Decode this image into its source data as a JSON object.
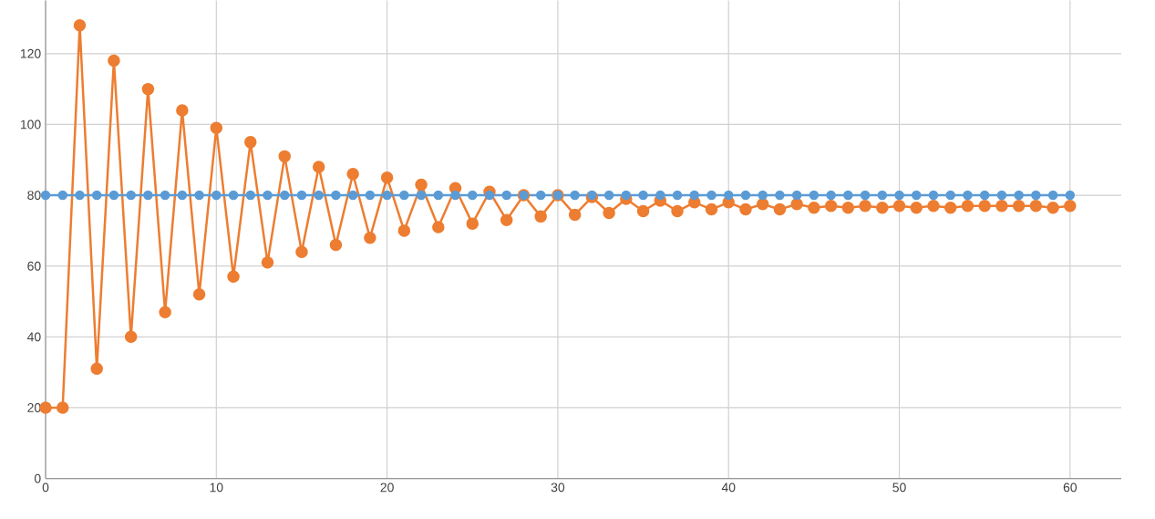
{
  "chart_data": {
    "type": "line",
    "x": [
      0,
      1,
      2,
      3,
      4,
      5,
      6,
      7,
      8,
      9,
      10,
      11,
      12,
      13,
      14,
      15,
      16,
      17,
      18,
      19,
      20,
      21,
      22,
      23,
      24,
      25,
      26,
      27,
      28,
      29,
      30,
      31,
      32,
      33,
      34,
      35,
      36,
      37,
      38,
      39,
      40,
      41,
      42,
      43,
      44,
      45,
      46,
      47,
      48,
      49,
      50,
      51,
      52,
      53,
      54,
      55,
      56,
      57,
      58,
      59,
      60
    ],
    "series": [
      {
        "color": "#ed7d31",
        "values": [
          20,
          20,
          128,
          31,
          118,
          40,
          110,
          47,
          104,
          52,
          99,
          57,
          95,
          61,
          91,
          64,
          88,
          66,
          86,
          68,
          85,
          70,
          83,
          71,
          82,
          72,
          81,
          73,
          80,
          74,
          80,
          74.5,
          79.5,
          75,
          79,
          75.5,
          78.5,
          75.5,
          78,
          76,
          78,
          76,
          77.5,
          76,
          77.5,
          76.5,
          77,
          76.5,
          77,
          76.5,
          77,
          76.5,
          77,
          76.5,
          77,
          77,
          77,
          77,
          77,
          76.5,
          77
        ]
      },
      {
        "color": "#5b9bd5",
        "values": [
          80,
          80,
          80,
          80,
          80,
          80,
          80,
          80,
          80,
          80,
          80,
          80,
          80,
          80,
          80,
          80,
          80,
          80,
          80,
          80,
          80,
          80,
          80,
          80,
          80,
          80,
          80,
          80,
          80,
          80,
          80,
          80,
          80,
          80,
          80,
          80,
          80,
          80,
          80,
          80,
          80,
          80,
          80,
          80,
          80,
          80,
          80,
          80,
          80,
          80,
          80,
          80,
          80,
          80,
          80,
          80,
          80,
          80,
          80,
          80,
          80
        ]
      }
    ],
    "xlim": [
      0,
      63
    ],
    "ylim": [
      0,
      135
    ],
    "xticks": [
      0,
      10,
      20,
      30,
      40,
      50,
      60
    ],
    "yticks": [
      0,
      20,
      40,
      60,
      80,
      100,
      120
    ],
    "grid": true,
    "marker": "circle",
    "line_style": "solid"
  }
}
